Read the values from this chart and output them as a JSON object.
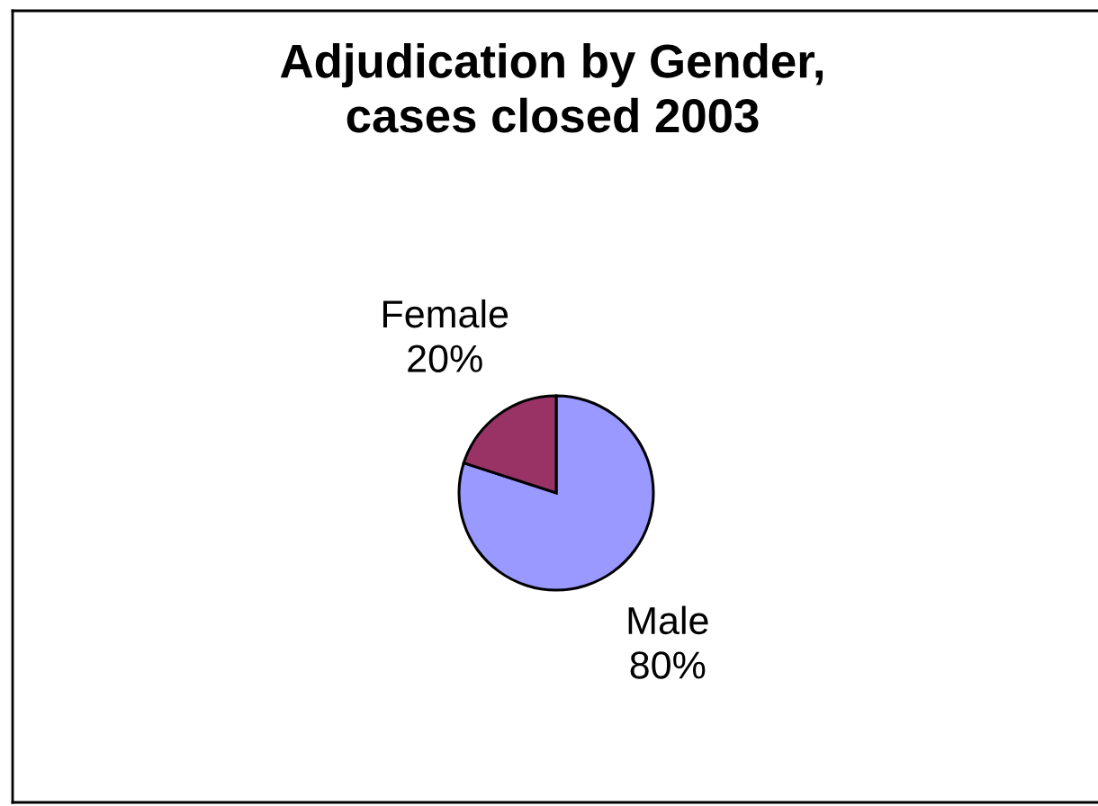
{
  "chart_data": {
    "type": "pie",
    "title": "Adjudication by Gender,\ncases closed 2003",
    "categories": [
      "Male",
      "Female"
    ],
    "values": [
      80,
      20
    ],
    "colors": [
      "#9999ff",
      "#993366"
    ],
    "value_labels": [
      "80%",
      "20%"
    ]
  }
}
